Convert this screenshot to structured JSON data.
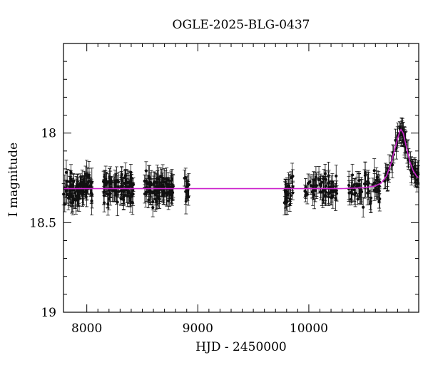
{
  "chart_data": {
    "type": "scatter",
    "title": "OGLE-2025-BLG-0437",
    "xlabel": "HJD - 2450000",
    "ylabel": "I magnitude",
    "xlim": [
      7790,
      10990
    ],
    "ylim": [
      19.0,
      17.5
    ],
    "y_inverted": true,
    "x_ticks": [
      8000,
      9000,
      10000
    ],
    "x_tick_labels": [
      "8000",
      "9000",
      "10000"
    ],
    "y_ticks": [
      18.0,
      18.5,
      19.0
    ],
    "y_tick_labels": [
      "18",
      "18.5",
      "19"
    ],
    "grid": false,
    "legend": "none",
    "colors": {
      "data": "#111111",
      "model": "#cc22cc"
    },
    "baseline_mag": 18.31,
    "peak": {
      "x": 10830,
      "mag": 17.98
    },
    "seasons": [
      {
        "x_start": 7790,
        "x_end": 8050,
        "mag": 18.31,
        "scatter": 0.07,
        "n": 95
      },
      {
        "x_start": 8150,
        "x_end": 8420,
        "mag": 18.31,
        "scatter": 0.07,
        "n": 95
      },
      {
        "x_start": 8520,
        "x_end": 8780,
        "mag": 18.31,
        "scatter": 0.07,
        "n": 95
      },
      {
        "x_start": 8880,
        "x_end": 8920,
        "mag": 18.31,
        "scatter": 0.05,
        "n": 14
      },
      {
        "x_start": 9780,
        "x_end": 9860,
        "mag": 18.33,
        "scatter": 0.07,
        "n": 28
      },
      {
        "x_start": 9960,
        "x_end": 10260,
        "mag": 18.31,
        "scatter": 0.06,
        "n": 60
      },
      {
        "x_start": 10360,
        "x_end": 10640,
        "mag": 18.31,
        "scatter": 0.07,
        "n": 60
      },
      {
        "x_start": 10680,
        "x_end": 10990,
        "mag": null,
        "scatter": 0.03,
        "n": 70,
        "follows_model": true
      }
    ],
    "model": [
      [
        7790,
        18.31
      ],
      [
        8500,
        18.31
      ],
      [
        9500,
        18.31
      ],
      [
        10300,
        18.31
      ],
      [
        10500,
        18.305
      ],
      [
        10600,
        18.295
      ],
      [
        10650,
        18.28
      ],
      [
        10700,
        18.24
      ],
      [
        10740,
        18.17
      ],
      [
        10770,
        18.1
      ],
      [
        10800,
        18.03
      ],
      [
        10820,
        17.99
      ],
      [
        10830,
        17.98
      ],
      [
        10850,
        18.0
      ],
      [
        10880,
        18.08
      ],
      [
        10910,
        18.16
      ],
      [
        10940,
        18.21
      ],
      [
        10970,
        18.24
      ],
      [
        10990,
        18.25
      ]
    ]
  }
}
